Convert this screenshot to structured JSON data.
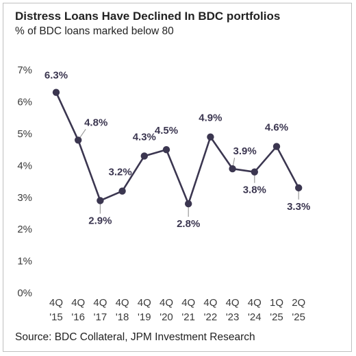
{
  "title": "Distress Loans Have Declined In BDC portfolios",
  "subtitle": "% of BDC loans marked below 80",
  "source": "Source: BDC Collateral, JPM Investment Research",
  "colors": {
    "line": "#3b3650",
    "leader": "#9a9a9a",
    "text": "#222222"
  },
  "chart_data": {
    "type": "line",
    "title": "Distress Loans Have Declined In BDC portfolios",
    "subtitle": "% of BDC loans marked below 80",
    "categories": [
      [
        "4Q",
        "'15"
      ],
      [
        "4Q",
        "'16"
      ],
      [
        "4Q",
        "'17"
      ],
      [
        "4Q",
        "'18"
      ],
      [
        "4Q",
        "'19"
      ],
      [
        "4Q",
        "'20"
      ],
      [
        "4Q",
        "'21"
      ],
      [
        "4Q",
        "'22"
      ],
      [
        "4Q",
        "'23"
      ],
      [
        "4Q",
        "'24"
      ],
      [
        "1Q",
        "'25"
      ],
      [
        "2Q",
        "'25"
      ]
    ],
    "values": [
      6.3,
      4.8,
      2.9,
      3.2,
      4.3,
      4.5,
      2.8,
      4.9,
      3.9,
      3.8,
      4.6,
      3.3
    ],
    "data_labels": [
      "6.3%",
      "4.8%",
      "2.9%",
      "3.2%",
      "4.3%",
      "4.5%",
      "2.8%",
      "4.9%",
      "3.9%",
      "3.8%",
      "4.6%",
      "3.3%"
    ],
    "yticks": [
      "0%",
      "1%",
      "2%",
      "3%",
      "4%",
      "5%",
      "6%",
      "7%"
    ],
    "ylim": [
      0,
      7
    ],
    "grid": false,
    "legend": "none"
  }
}
